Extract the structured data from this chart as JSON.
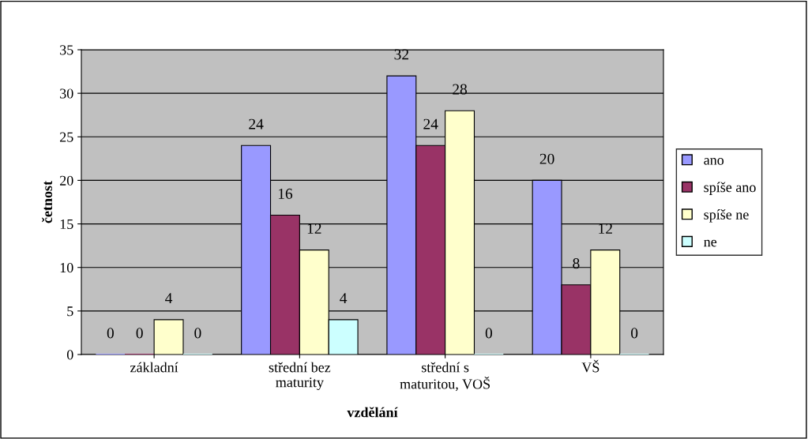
{
  "chart_data": {
    "type": "bar",
    "xlabel": "vzdělání",
    "ylabel": "četnost",
    "categories": [
      "základní",
      "střední bez\nmaturity",
      "střední s\nmaturitou, VOŠ",
      "VŠ"
    ],
    "series": [
      {
        "name": "ano",
        "color": "#9999ff",
        "values": [
          0,
          24,
          32,
          20
        ]
      },
      {
        "name": "spíše ano",
        "color": "#993366",
        "values": [
          0,
          16,
          24,
          8
        ]
      },
      {
        "name": "spíše ne",
        "color": "#ffffcc",
        "values": [
          4,
          12,
          28,
          12
        ]
      },
      {
        "name": "ne",
        "color": "#ccffff",
        "values": [
          0,
          4,
          0,
          0
        ]
      }
    ],
    "ylim": [
      0,
      35
    ],
    "yticks": [
      0,
      5,
      10,
      15,
      20,
      25,
      30,
      35
    ],
    "grid": "y",
    "legend": "right",
    "data_labels": true
  }
}
